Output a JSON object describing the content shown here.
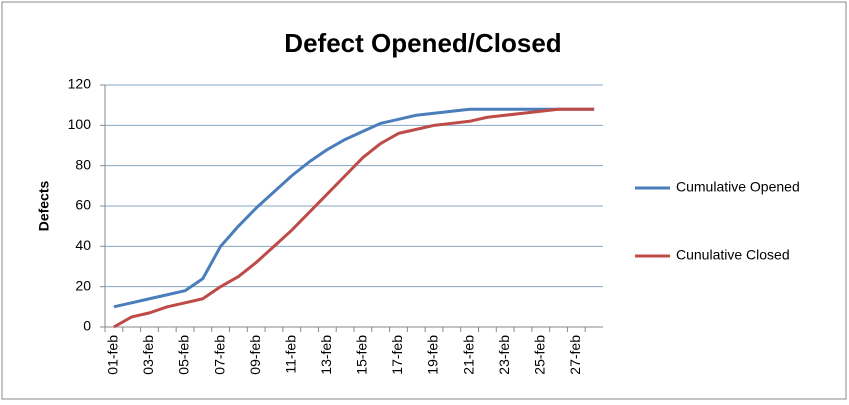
{
  "chart_data": {
    "type": "line",
    "title": "Defect Opened/Closed",
    "y_label": "Defects",
    "categories": [
      "01-feb",
      null,
      "03-feb",
      null,
      "05-feb",
      null,
      "07-feb",
      null,
      "09-feb",
      null,
      "11-feb",
      null,
      "13-feb",
      null,
      "15-feb",
      null,
      "17-feb",
      null,
      "19-feb",
      null,
      "21-feb",
      null,
      "23-feb",
      null,
      "25-feb",
      null,
      "27-feb",
      null
    ],
    "series": [
      {
        "name": "Cumulative Opened",
        "color": "#4a7ebb",
        "values": [
          10,
          12,
          14,
          16,
          18,
          24,
          40,
          50,
          59,
          67,
          75,
          82,
          88,
          93,
          97,
          101,
          103,
          105,
          106,
          107,
          108,
          108,
          108,
          108,
          108,
          108,
          108,
          108
        ]
      },
      {
        "name": "Cunulative Closed",
        "color": "#be4b48",
        "values": [
          0,
          5,
          7,
          10,
          12,
          14,
          20,
          25,
          32,
          40,
          48,
          57,
          66,
          75,
          84,
          91,
          96,
          98,
          100,
          101,
          102,
          104,
          105,
          106,
          107,
          108,
          108,
          108
        ]
      }
    ],
    "ylim": [
      0,
      120
    ],
    "yticks": [
      0,
      20,
      40,
      60,
      80,
      100,
      120
    ],
    "grid": true,
    "legend": "right"
  }
}
